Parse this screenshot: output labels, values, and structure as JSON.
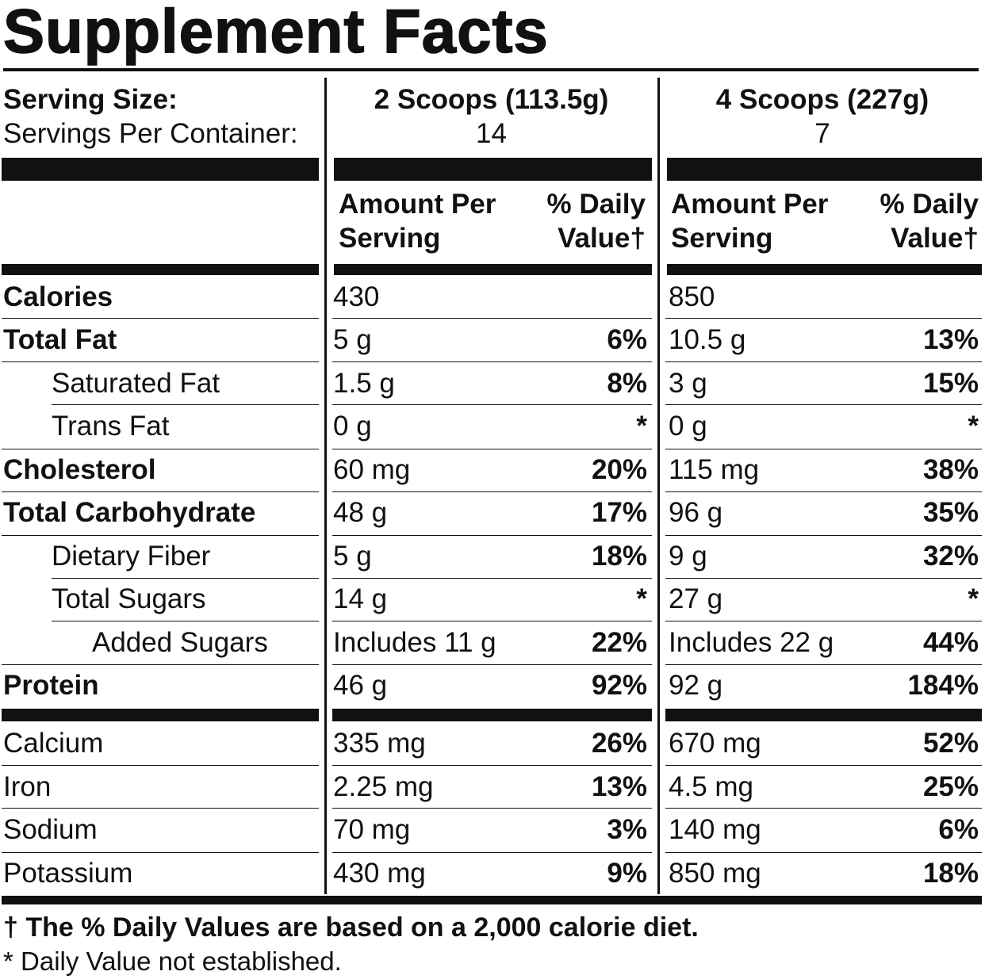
{
  "title": "Supplement Facts",
  "serving_size_label": "Serving Size:",
  "servings_per_container_label": "Servings Per Container:",
  "columns": [
    {
      "serving_size": "2 Scoops (113.5g)",
      "servings": "14",
      "amount_header": [
        "Amount Per",
        "Serving"
      ],
      "dv_header": [
        "% Daily",
        "Value†"
      ]
    },
    {
      "serving_size": "4 Scoops (227g)",
      "servings": "7",
      "amount_header": [
        "Amount Per",
        "Serving"
      ],
      "dv_header": [
        "% Daily",
        "Value†"
      ]
    }
  ],
  "nutrients": [
    {
      "name": "Calories",
      "v1": "430",
      "d1": "",
      "v2": "850",
      "d2": ""
    },
    {
      "name": "Total Fat",
      "v1": "5 g",
      "d1": "6%",
      "v2": "10.5 g",
      "d2": "13%"
    },
    {
      "name": "Saturated Fat",
      "v1": "1.5 g",
      "d1": "8%",
      "v2": "3 g",
      "d2": "15%"
    },
    {
      "name": "Trans Fat",
      "v1": "0 g",
      "d1": "*",
      "v2": "0 g",
      "d2": "*"
    },
    {
      "name": "Cholesterol",
      "v1": "60 mg",
      "d1": "20%",
      "v2": "115 mg",
      "d2": "38%"
    },
    {
      "name": "Total Carbohydrate",
      "v1": "48 g",
      "d1": "17%",
      "v2": "96 g",
      "d2": "35%"
    },
    {
      "name": "Dietary Fiber",
      "v1": "5 g",
      "d1": "18%",
      "v2": "9 g",
      "d2": "32%"
    },
    {
      "name": "Total Sugars",
      "v1": "14 g",
      "d1": "*",
      "v2": "27 g",
      "d2": "*"
    },
    {
      "name": "Added Sugars",
      "v1": "Includes 11 g",
      "d1": "22%",
      "v2": "Includes 22 g",
      "d2": "44%"
    },
    {
      "name": "Protein",
      "v1": "46 g",
      "d1": "92%",
      "v2": "92 g",
      "d2": "184%"
    },
    {
      "name": "Calcium",
      "v1": "335 mg",
      "d1": "26%",
      "v2": "670 mg",
      "d2": "52%"
    },
    {
      "name": "Iron",
      "v1": "2.25 mg",
      "d1": "13%",
      "v2": "4.5 mg",
      "d2": "25%"
    },
    {
      "name": "Sodium",
      "v1": "70 mg",
      "d1": "3%",
      "v2": "140 mg",
      "d2": "6%"
    },
    {
      "name": "Potassium",
      "v1": "430 mg",
      "d1": "9%",
      "v2": "850 mg",
      "d2": "18%"
    }
  ],
  "footnotes": {
    "dagger": "† The % Daily Values are based on a 2,000 calorie diet.",
    "star": "* Daily Value not established."
  }
}
